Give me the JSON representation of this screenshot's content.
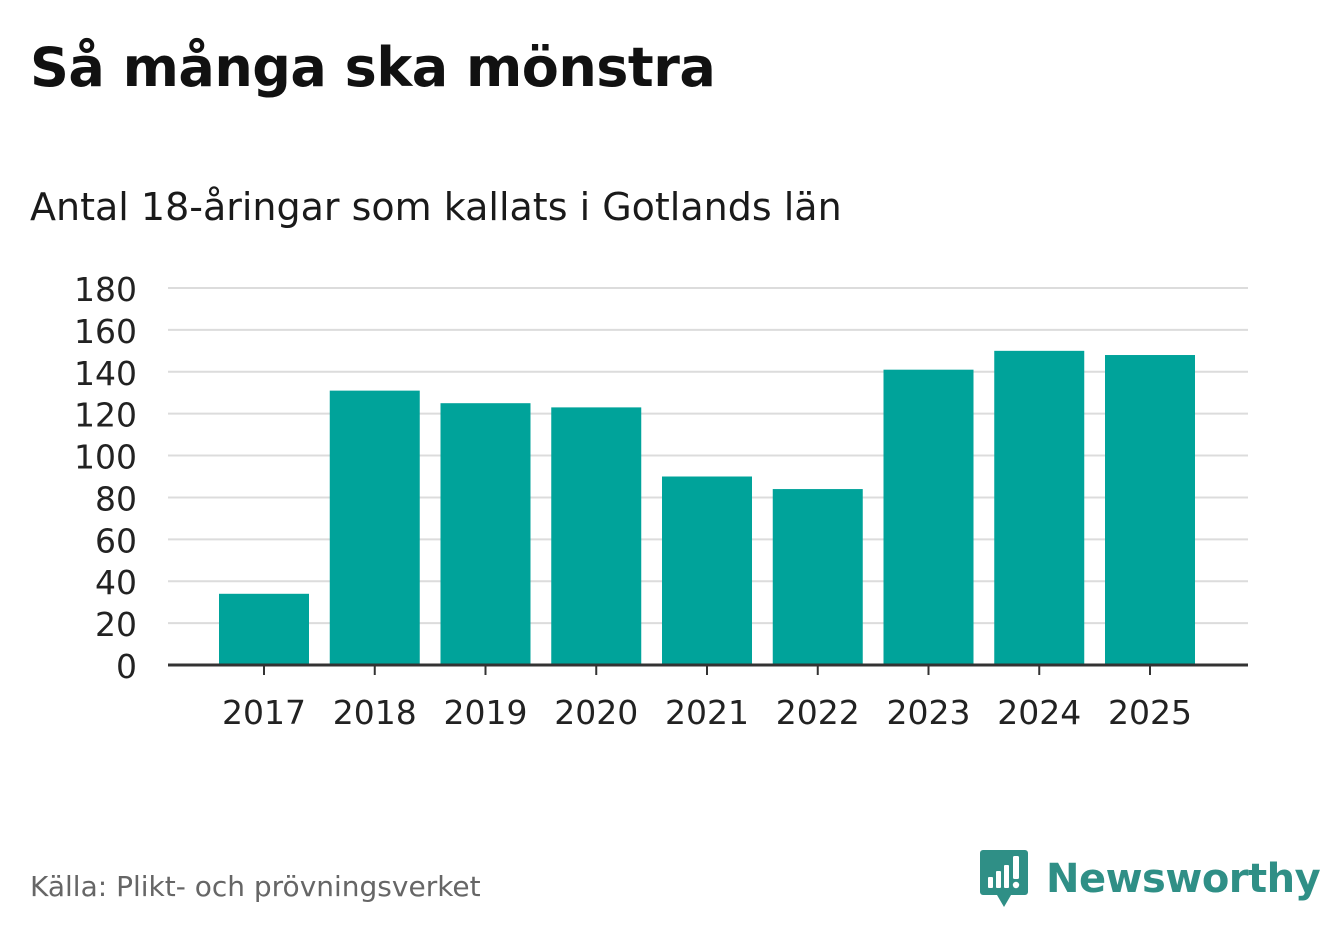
{
  "chart_data": {
    "type": "bar",
    "title": "Så många ska mönstra",
    "subtitle": "Antal 18-åringar som kallats i Gotlands län",
    "categories": [
      "2017",
      "2018",
      "2019",
      "2020",
      "2021",
      "2022",
      "2023",
      "2024",
      "2025"
    ],
    "values": [
      34,
      131,
      125,
      123,
      90,
      84,
      141,
      150,
      148
    ],
    "xlabel": "",
    "ylabel": "",
    "ylim": [
      0,
      180
    ],
    "yticks": [
      0,
      20,
      40,
      60,
      80,
      100,
      120,
      140,
      160,
      180
    ],
    "grid": true,
    "bar_color": "#00a39a"
  },
  "footer": {
    "source": "Källa: Plikt- och prövningsverket",
    "brand": "Newsworthy",
    "brand_color": "#2f8f86"
  }
}
